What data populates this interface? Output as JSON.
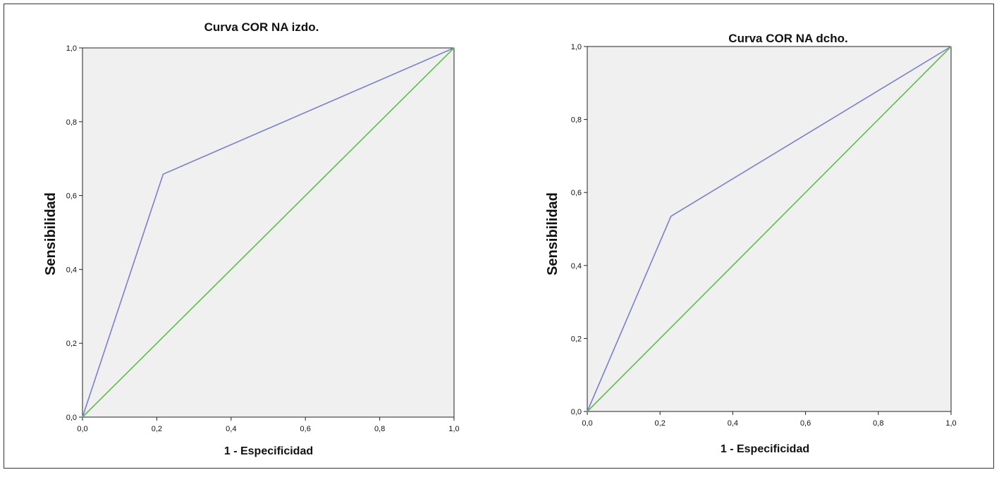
{
  "chart_data": [
    {
      "type": "line",
      "title": "Curva COR NA izdo.",
      "xlabel": "1 - Especificidad",
      "ylabel": "Sensibilidad",
      "xlim": [
        0,
        1
      ],
      "ylim": [
        0,
        1
      ],
      "x_ticks": [
        "0,0",
        "0,2",
        "0,4",
        "0,6",
        "0,8",
        "1,0"
      ],
      "y_ticks": [
        "0,0",
        "0,2",
        "0,4",
        "0,6",
        "0,8",
        "1,0"
      ],
      "grid": false,
      "series": [
        {
          "x": [
            0,
            0.217,
            1
          ],
          "y": [
            0,
            0.658,
            1
          ],
          "color": "#7b7fd1"
        },
        {
          "x": [
            0,
            1
          ],
          "y": [
            0,
            1
          ],
          "color": "#5cbf4a"
        }
      ],
      "plot_background": "#f0f0f0"
    },
    {
      "type": "line",
      "title": "Curva COR NA dcho.",
      "xlabel": "1 - Especificidad",
      "ylabel": "Sensibilidad",
      "xlim": [
        0,
        1
      ],
      "ylim": [
        0,
        1
      ],
      "x_ticks": [
        "0,0",
        "0,2",
        "0,4",
        "0,6",
        "0,8",
        "1,0"
      ],
      "y_ticks": [
        "0,0",
        "0,2",
        "0,4",
        "0,6",
        "0,8",
        "1,0"
      ],
      "grid": false,
      "series": [
        {
          "x": [
            0,
            0.23,
            1
          ],
          "y": [
            0,
            0.535,
            1
          ],
          "color": "#7b7fd1"
        },
        {
          "x": [
            0,
            1
          ],
          "y": [
            0,
            1
          ],
          "color": "#5cbf4a"
        }
      ],
      "plot_background": "#f0f0f0"
    }
  ]
}
